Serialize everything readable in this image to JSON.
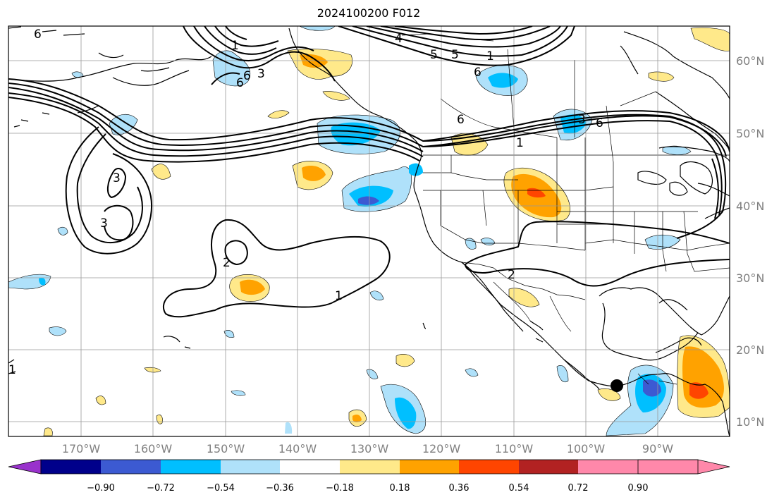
{
  "title": "2024100200 F012",
  "lon_labels": [
    "170°W",
    "160°W",
    "150°W",
    "140°W",
    "130°W",
    "120°W",
    "110°W",
    "100°W",
    "90°W"
  ],
  "lat_labels": [
    "60°N",
    "50°N",
    "40°N",
    "30°N",
    "20°N",
    "10°N"
  ],
  "colorbar": {
    "tick_labels": [
      "−0.90",
      "−0.72",
      "−0.54",
      "−0.36",
      "−0.18",
      "0.18",
      "0.36",
      "0.54",
      "0.72",
      "0.90"
    ],
    "colors": [
      "#9932cc",
      "#00008b",
      "#3c5ad2",
      "#00bfff",
      "#afe1fa",
      "#ffffff",
      "#ffe98a",
      "#ffa200",
      "#ff4500",
      "#b22222",
      "#ff88aa"
    ]
  },
  "contour_labels": [
    "6",
    "6",
    "1",
    "3",
    "6",
    "4",
    "5",
    "5",
    "6",
    "1",
    "6",
    "3",
    "3",
    "3",
    "1",
    "2",
    "2",
    "1",
    "6",
    "1"
  ],
  "colors": {
    "blue_light": "#afe1fa",
    "blue_mid": "#00bfff",
    "blue_dark": "#3c5ad2",
    "yellow": "#ffe98a",
    "orange": "#ffa200",
    "red": "#ff4500"
  }
}
